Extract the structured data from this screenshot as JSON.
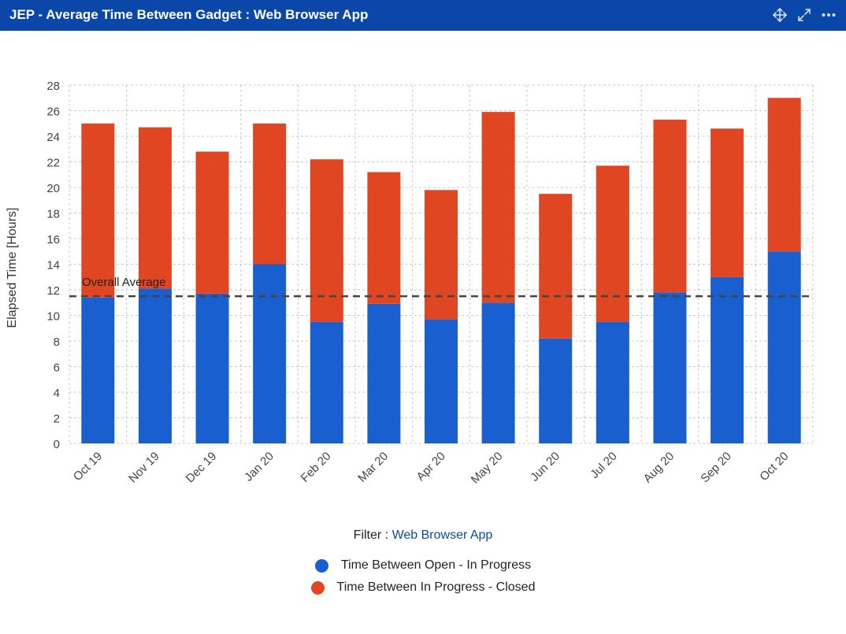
{
  "header": {
    "title": "JEP - Average Time Between Gadget : Web Browser App",
    "icons": [
      "move-icon",
      "expand-icon",
      "more-icon"
    ]
  },
  "colors": {
    "header_bg": "#0b47a8",
    "series_1": "#1a5fcf",
    "series_2": "#e04622",
    "average_line": "#444444"
  },
  "filter": {
    "label": "Filter : ",
    "value": "Web Browser App"
  },
  "chart_data": {
    "type": "bar",
    "stacked": true,
    "ylabel": "Elapsed Time [Hours]",
    "xlabel": "",
    "title": "",
    "ylim": [
      0,
      28
    ],
    "yticks": [
      0,
      2,
      4,
      6,
      8,
      10,
      12,
      14,
      16,
      18,
      20,
      22,
      24,
      26,
      28
    ],
    "grid": true,
    "legend_position": "bottom",
    "categories": [
      "Oct 19",
      "Nov 19",
      "Dec 19",
      "Jan 20",
      "Feb 20",
      "Mar 20",
      "Apr 20",
      "May 20",
      "Jun 20",
      "Jul 20",
      "Aug 20",
      "Sep 20",
      "Oct 20"
    ],
    "series": [
      {
        "name": "Time Between Open - In Progress",
        "color": "#1a5fcf",
        "values": [
          11.4,
          12.1,
          11.7,
          14.0,
          9.5,
          10.9,
          9.7,
          11.0,
          8.2,
          9.5,
          11.8,
          13.0,
          15.0
        ]
      },
      {
        "name": "Time Between In Progress - Closed",
        "color": "#e04622",
        "values": [
          13.6,
          12.6,
          11.1,
          11.0,
          12.7,
          10.3,
          10.1,
          14.9,
          11.3,
          12.2,
          13.5,
          11.6,
          12.0
        ]
      }
    ],
    "reference_line": {
      "label": "Overall Average",
      "value": 11.5
    }
  }
}
